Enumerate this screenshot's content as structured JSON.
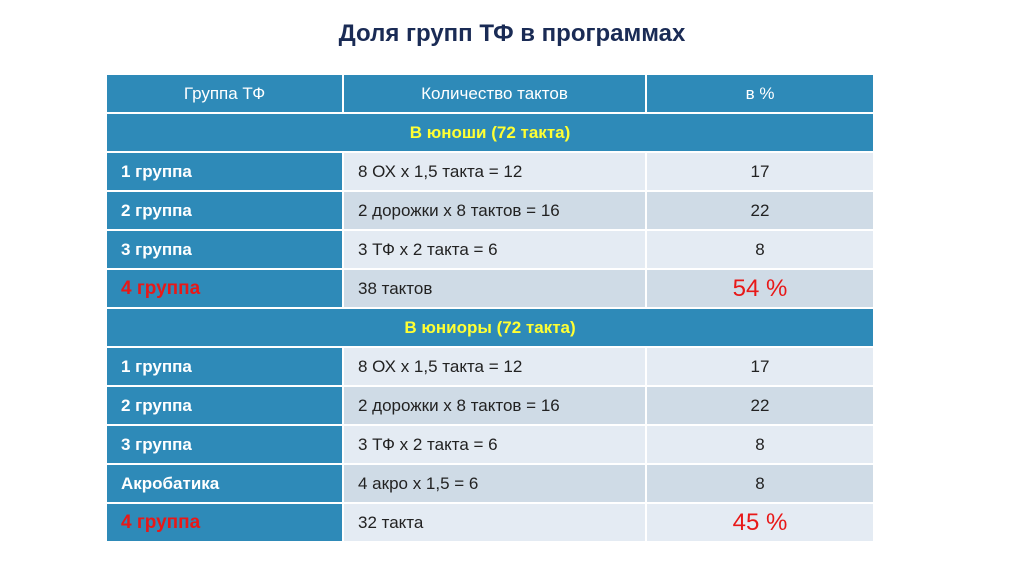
{
  "title": "Доля групп ТФ в программах",
  "colors": {
    "header_bg": "#2e8ab8",
    "section_text": "#ffff33",
    "highlight_red": "#e81818"
  },
  "table": {
    "headers": [
      "Группа ТФ",
      "Количество тактов",
      "в %"
    ],
    "sections": [
      {
        "label": "В юноши (72 такта)",
        "rows": [
          {
            "group": "1 группа",
            "count": "8 ОХ x 1,5 такта = 12",
            "percent": "17",
            "highlight": false
          },
          {
            "group": "2 группа",
            "count": "2 дорожки x 8 тактов = 16",
            "percent": "22",
            "highlight": false
          },
          {
            "group": "3 группа",
            "count": "3 ТФ x 2 такта = 6",
            "percent": "8",
            "highlight": false
          },
          {
            "group": "4 группа",
            "count": "38 тактов",
            "percent": "54 %",
            "highlight": true
          }
        ]
      },
      {
        "label": "В юниоры (72 такта)",
        "rows": [
          {
            "group": "1 группа",
            "count": "8 ОХ x 1,5 такта = 12",
            "percent": "17",
            "highlight": false
          },
          {
            "group": "2 группа",
            "count": "2 дорожки x 8 тактов = 16",
            "percent": "22",
            "highlight": false
          },
          {
            "group": "3 группа",
            "count": "3 ТФ x 2 такта = 6",
            "percent": "8",
            "highlight": false
          },
          {
            "group": "Акробатика",
            "count": "4 акро x 1,5 = 6",
            "percent": "8",
            "highlight": false
          },
          {
            "group": "4 группа",
            "count": "32 такта",
            "percent": "45 %",
            "highlight": true
          }
        ]
      }
    ]
  }
}
